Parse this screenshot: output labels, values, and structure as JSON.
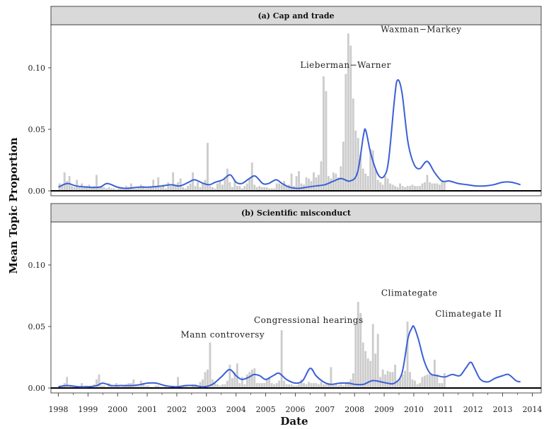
{
  "chart_data": {
    "type": "bar",
    "ylabel": "Mean Topic Proportion",
    "xlabel": "Date",
    "xlim": [
      1997.75,
      2014.3
    ],
    "xticks": [
      "1998",
      "1999",
      "2000",
      "2001",
      "2002",
      "2003",
      "2004",
      "2005",
      "2006",
      "2007",
      "2008",
      "2009",
      "2010",
      "2011",
      "2012",
      "2013",
      "2014"
    ],
    "ylim": [
      -0.004,
      0.135
    ],
    "yticks": [
      {
        "value": 0.0,
        "label": "0.00"
      },
      {
        "value": 0.05,
        "label": "0.05"
      },
      {
        "value": 0.1,
        "label": "0.10"
      }
    ],
    "bar_color": "#cccccc",
    "line_color": "#3a5fd6",
    "panels": [
      {
        "title": "(a) Cap and trade",
        "start": 1998.0,
        "step": 0.0833,
        "values": [
          0.006,
          0.005,
          0.015,
          0.008,
          0.012,
          0.004,
          0.003,
          0.009,
          0.004,
          0.006,
          0.003,
          0.004,
          0.005,
          0.003,
          0.004,
          0.013,
          0.004,
          0.003,
          0.003,
          0.002,
          0.003,
          0.002,
          0.002,
          0.001,
          0.003,
          0.002,
          0.002,
          0.004,
          0.003,
          0.006,
          0.002,
          0.002,
          0.003,
          0.005,
          0.004,
          0.002,
          0.003,
          0.003,
          0.009,
          0.004,
          0.011,
          0.003,
          0.005,
          0.002,
          0.007,
          0.004,
          0.015,
          0.005,
          0.007,
          0.01,
          0.003,
          0.002,
          0.004,
          0.006,
          0.015,
          0.004,
          0.007,
          0.003,
          0.006,
          0.009,
          0.039,
          0.004,
          0.003,
          0.002,
          0.006,
          0.008,
          0.005,
          0.011,
          0.018,
          0.007,
          0.003,
          0.009,
          0.004,
          0.004,
          0.002,
          0.004,
          0.006,
          0.01,
          0.023,
          0.005,
          0.003,
          0.004,
          0.003,
          0.003,
          0.003,
          0.002,
          0.002,
          0.002,
          0.006,
          0.006,
          0.005,
          0.008,
          0.004,
          0.005,
          0.014,
          0.004,
          0.012,
          0.016,
          0.006,
          0.005,
          0.011,
          0.01,
          0.008,
          0.015,
          0.011,
          0.013,
          0.024,
          0.093,
          0.081,
          0.012,
          0.01,
          0.015,
          0.014,
          0.011,
          0.02,
          0.04,
          0.095,
          0.128,
          0.118,
          0.075,
          0.049,
          0.043,
          0.029,
          0.018,
          0.014,
          0.012,
          0.034,
          0.033,
          0.017,
          0.009,
          0.007,
          0.005,
          0.012,
          0.01,
          0.006,
          0.005,
          0.004,
          0.003,
          0.006,
          0.004,
          0.003,
          0.004,
          0.004,
          0.005,
          0.004,
          0.004,
          0.004,
          0.006,
          0.007,
          0.013,
          0.007,
          0.006,
          0.006,
          0.006,
          0.005,
          0.008,
          0.007
        ],
        "trend": [
          [
            1998.0,
            0.003
          ],
          [
            1998.3,
            0.006
          ],
          [
            1998.6,
            0.004
          ],
          [
            1999.0,
            0.003
          ],
          [
            1999.4,
            0.003
          ],
          [
            1999.65,
            0.006
          ],
          [
            2000.0,
            0.003
          ],
          [
            2000.3,
            0.002
          ],
          [
            2000.7,
            0.003
          ],
          [
            2001.0,
            0.003
          ],
          [
            2001.5,
            0.004
          ],
          [
            2001.8,
            0.005
          ],
          [
            2002.1,
            0.004
          ],
          [
            2002.4,
            0.007
          ],
          [
            2002.6,
            0.009
          ],
          [
            2002.9,
            0.006
          ],
          [
            2003.1,
            0.005
          ],
          [
            2003.3,
            0.007
          ],
          [
            2003.55,
            0.009
          ],
          [
            2003.8,
            0.013
          ],
          [
            2004.0,
            0.007
          ],
          [
            2004.2,
            0.006
          ],
          [
            2004.45,
            0.01
          ],
          [
            2004.65,
            0.012
          ],
          [
            2004.9,
            0.006
          ],
          [
            2005.1,
            0.006
          ],
          [
            2005.35,
            0.009
          ],
          [
            2005.55,
            0.006
          ],
          [
            2005.8,
            0.003
          ],
          [
            2006.1,
            0.002
          ],
          [
            2006.4,
            0.003
          ],
          [
            2006.7,
            0.004
          ],
          [
            2007.0,
            0.005
          ],
          [
            2007.3,
            0.008
          ],
          [
            2007.55,
            0.01
          ],
          [
            2007.85,
            0.008
          ],
          [
            2008.1,
            0.015
          ],
          [
            2008.3,
            0.045
          ],
          [
            2008.38,
            0.049
          ],
          [
            2008.55,
            0.03
          ],
          [
            2008.8,
            0.013
          ],
          [
            2009.0,
            0.012
          ],
          [
            2009.15,
            0.025
          ],
          [
            2009.35,
            0.075
          ],
          [
            2009.45,
            0.09
          ],
          [
            2009.6,
            0.08
          ],
          [
            2009.8,
            0.04
          ],
          [
            2010.0,
            0.022
          ],
          [
            2010.2,
            0.018
          ],
          [
            2010.45,
            0.024
          ],
          [
            2010.7,
            0.015
          ],
          [
            2010.95,
            0.008
          ],
          [
            2011.2,
            0.008
          ],
          [
            2011.5,
            0.006
          ],
          [
            2011.8,
            0.005
          ],
          [
            2012.1,
            0.004
          ],
          [
            2012.4,
            0.004
          ],
          [
            2012.7,
            0.005
          ],
          [
            2013.0,
            0.007
          ],
          [
            2013.3,
            0.007
          ],
          [
            2013.6,
            0.005
          ]
        ],
        "annotations": [
          {
            "text": "Lieberman−Warner",
            "x": 2007.7,
            "y": 0.1
          },
          {
            "text": "Waxman−Markey",
            "x": 2010.25,
            "y": 0.129
          }
        ]
      },
      {
        "title": "(b) Scientific misconduct",
        "start": 1998.0,
        "step": 0.0833,
        "values": [
          0.002,
          0.002,
          0.004,
          0.009,
          0.002,
          0.002,
          0.001,
          0.001,
          0.001,
          0.004,
          0.002,
          0.002,
          0.001,
          0.002,
          0.003,
          0.007,
          0.011,
          0.002,
          0.002,
          0.001,
          0.004,
          0.002,
          0.001,
          0.004,
          0.002,
          0.001,
          0.002,
          0.003,
          0.004,
          0.004,
          0.007,
          0.003,
          0.002,
          0.006,
          0.004,
          0.002,
          0.002,
          0.001,
          0.001,
          0.002,
          0.002,
          0.001,
          0.001,
          0.002,
          0.001,
          0.001,
          0.002,
          0.001,
          0.009,
          0.002,
          0.002,
          0.002,
          0.001,
          0.001,
          0.003,
          0.003,
          0.002,
          0.005,
          0.007,
          0.013,
          0.015,
          0.037,
          0.007,
          0.004,
          0.003,
          0.002,
          0.003,
          0.003,
          0.006,
          0.019,
          0.008,
          0.013,
          0.02,
          0.004,
          0.009,
          0.003,
          0.011,
          0.013,
          0.015,
          0.016,
          0.004,
          0.004,
          0.004,
          0.004,
          0.007,
          0.009,
          0.004,
          0.003,
          0.004,
          0.006,
          0.047,
          0.006,
          0.003,
          0.003,
          0.003,
          0.002,
          0.002,
          0.003,
          0.007,
          0.004,
          0.003,
          0.005,
          0.004,
          0.004,
          0.004,
          0.003,
          0.005,
          0.003,
          0.003,
          0.004,
          0.017,
          0.003,
          0.004,
          0.002,
          0.003,
          0.002,
          0.004,
          0.005,
          0.007,
          0.012,
          0.052,
          0.07,
          0.061,
          0.037,
          0.03,
          0.024,
          0.022,
          0.052,
          0.028,
          0.044,
          0.009,
          0.015,
          0.011,
          0.014,
          0.013,
          0.013,
          0.019,
          0.006,
          0.008,
          0.011,
          0.014,
          0.054,
          0.013,
          0.007,
          0.006,
          0.003,
          0.004,
          0.009,
          0.01,
          0.011,
          0.011,
          0.011,
          0.023,
          0.011,
          0.004,
          0.004,
          0.012
        ],
        "trend": [
          [
            1998.0,
            0.001
          ],
          [
            1998.3,
            0.002
          ],
          [
            1998.7,
            0.001
          ],
          [
            1999.0,
            0.001
          ],
          [
            1999.3,
            0.002
          ],
          [
            1999.5,
            0.004
          ],
          [
            1999.8,
            0.002
          ],
          [
            2000.1,
            0.002
          ],
          [
            2000.5,
            0.002
          ],
          [
            2000.8,
            0.003
          ],
          [
            2001.0,
            0.004
          ],
          [
            2001.3,
            0.004
          ],
          [
            2001.6,
            0.002
          ],
          [
            2002.0,
            0.001
          ],
          [
            2002.3,
            0.002
          ],
          [
            2002.6,
            0.002
          ],
          [
            2002.9,
            0.001
          ],
          [
            2003.2,
            0.003
          ],
          [
            2003.5,
            0.009
          ],
          [
            2003.78,
            0.015
          ],
          [
            2004.0,
            0.01
          ],
          [
            2004.2,
            0.007
          ],
          [
            2004.45,
            0.009
          ],
          [
            2004.6,
            0.011
          ],
          [
            2004.8,
            0.01
          ],
          [
            2005.0,
            0.007
          ],
          [
            2005.25,
            0.01
          ],
          [
            2005.45,
            0.012
          ],
          [
            2005.7,
            0.007
          ],
          [
            2006.0,
            0.004
          ],
          [
            2006.25,
            0.006
          ],
          [
            2006.5,
            0.016
          ],
          [
            2006.7,
            0.01
          ],
          [
            2006.95,
            0.005
          ],
          [
            2007.2,
            0.003
          ],
          [
            2007.5,
            0.004
          ],
          [
            2007.8,
            0.004
          ],
          [
            2008.0,
            0.003
          ],
          [
            2008.3,
            0.003
          ],
          [
            2008.6,
            0.006
          ],
          [
            2008.9,
            0.005
          ],
          [
            2009.1,
            0.004
          ],
          [
            2009.35,
            0.004
          ],
          [
            2009.6,
            0.012
          ],
          [
            2009.8,
            0.04
          ],
          [
            2009.92,
            0.048
          ],
          [
            2010.0,
            0.05
          ],
          [
            2010.15,
            0.04
          ],
          [
            2010.35,
            0.022
          ],
          [
            2010.55,
            0.012
          ],
          [
            2010.8,
            0.01
          ],
          [
            2011.05,
            0.009
          ],
          [
            2011.3,
            0.011
          ],
          [
            2011.55,
            0.01
          ],
          [
            2011.75,
            0.016
          ],
          [
            2011.92,
            0.021
          ],
          [
            2012.05,
            0.016
          ],
          [
            2012.25,
            0.007
          ],
          [
            2012.5,
            0.005
          ],
          [
            2012.75,
            0.008
          ],
          [
            2013.0,
            0.01
          ],
          [
            2013.2,
            0.011
          ],
          [
            2013.45,
            0.006
          ],
          [
            2013.6,
            0.005
          ]
        ],
        "annotations": [
          {
            "text": "Mann controversy",
            "x": 2003.55,
            "y": 0.041
          },
          {
            "text": "Congressional hearings",
            "x": 2006.45,
            "y": 0.053
          },
          {
            "text": "Climategate",
            "x": 2009.85,
            "y": 0.075
          },
          {
            "text": "Climategate II",
            "x": 2011.85,
            "y": 0.058
          }
        ]
      }
    ]
  }
}
